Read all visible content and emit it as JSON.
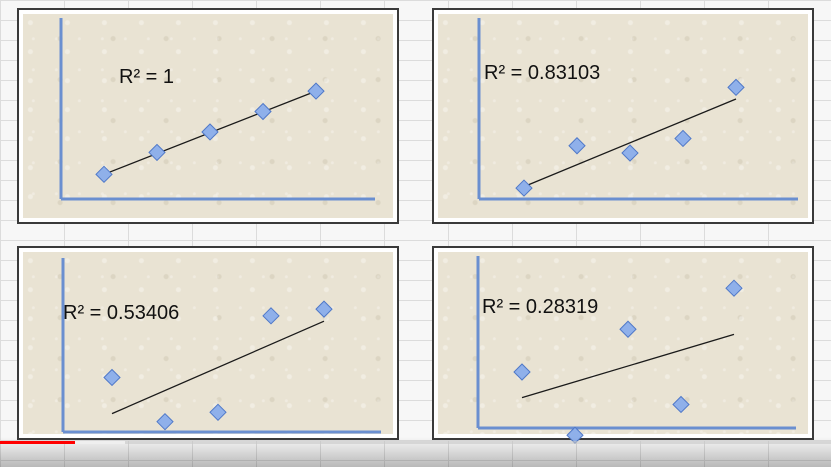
{
  "colors": {
    "axis": "#6a8fd0",
    "marker_fill": "#8fb0ea",
    "marker_stroke": "#4f78c8",
    "trendline": "#1a1a1a",
    "panel_bg": "#e9e3d3",
    "progress_played": "#ff0000"
  },
  "video_progress": {
    "played_fraction": 0.09,
    "buffered_fraction": 0.15
  },
  "chart_data": [
    {
      "type": "scatter",
      "r2_label": "R² = 1",
      "xlim": [
        0,
        10
      ],
      "ylim": [
        0,
        10
      ],
      "points": [
        {
          "x": 1,
          "y": 1.8
        },
        {
          "x": 2,
          "y": 3.3
        },
        {
          "x": 3,
          "y": 4.7
        },
        {
          "x": 4,
          "y": 6.1
        },
        {
          "x": 5,
          "y": 7.5
        }
      ],
      "trendline": {
        "x1": 1,
        "y1": 1.8,
        "x2": 5,
        "y2": 7.5
      }
    },
    {
      "type": "scatter",
      "r2_label": "R² = 0.83103",
      "xlim": [
        0,
        10
      ],
      "ylim": [
        0,
        10
      ],
      "points": [
        {
          "x": 1,
          "y": 1.2
        },
        {
          "x": 2,
          "y": 4.1
        },
        {
          "x": 3,
          "y": 3.6
        },
        {
          "x": 4,
          "y": 4.6
        },
        {
          "x": 5,
          "y": 8.1
        }
      ],
      "trendline": {
        "x1": 1,
        "y1": 1.3,
        "x2": 5,
        "y2": 7.3
      }
    },
    {
      "type": "scatter",
      "r2_label": "R² = 0.53406",
      "xlim": [
        0,
        10
      ],
      "ylim": [
        0,
        10
      ],
      "points": [
        {
          "x": 1,
          "y": 4.1
        },
        {
          "x": 2,
          "y": 0.8
        },
        {
          "x": 3,
          "y": 1.5
        },
        {
          "x": 4,
          "y": 8.7
        },
        {
          "x": 5,
          "y": 9.2
        }
      ],
      "trendline": {
        "x1": 1,
        "y1": 1.4,
        "x2": 5,
        "y2": 8.3
      }
    },
    {
      "type": "scatter",
      "r2_label": "R² = 0.28319",
      "xlim": [
        0,
        10
      ],
      "ylim": [
        0,
        10
      ],
      "points": [
        {
          "x": 1,
          "y": 4.1
        },
        {
          "x": 2,
          "y": 0.4
        },
        {
          "x": 3,
          "y": 6.6
        },
        {
          "x": 4,
          "y": 2.2
        },
        {
          "x": 5,
          "y": 9.0
        }
      ],
      "trendline": {
        "x1": 1,
        "y1": 2.6,
        "x2": 5,
        "y2": 6.3
      }
    }
  ]
}
